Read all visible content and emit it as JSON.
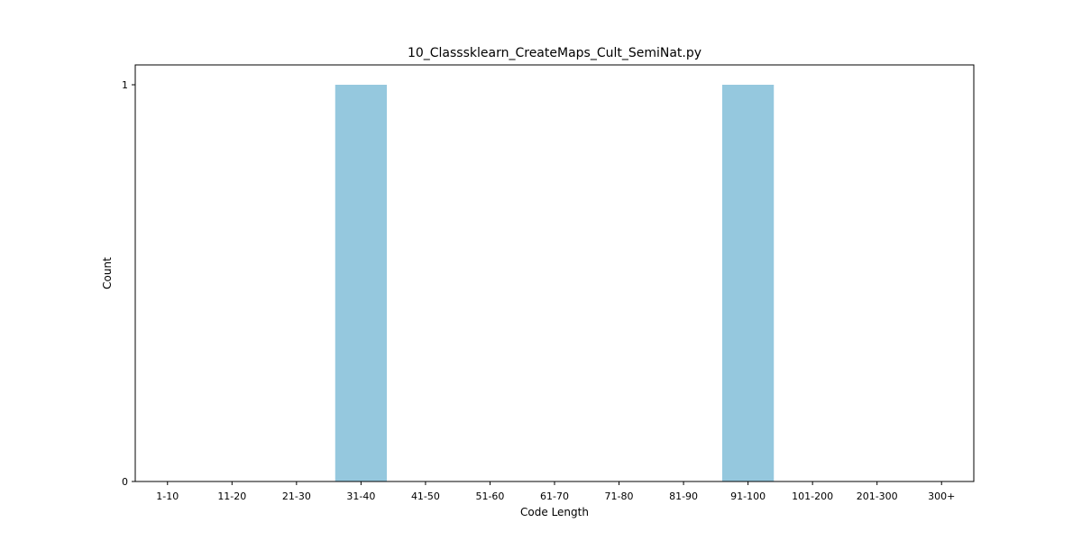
{
  "chart_data": {
    "type": "bar",
    "title": "10_Classsklearn_CreateMaps_Cult_SemiNat.py",
    "xlabel": "Code Length",
    "ylabel": "Count",
    "categories": [
      "1-10",
      "11-20",
      "21-30",
      "31-40",
      "41-50",
      "51-60",
      "61-70",
      "71-80",
      "81-90",
      "91-100",
      "101-200",
      "201-300",
      "300+"
    ],
    "values": [
      0,
      0,
      0,
      1,
      0,
      0,
      0,
      0,
      0,
      1,
      0,
      0,
      0
    ],
    "ylim": [
      0,
      1.05
    ],
    "yticks": [
      0,
      1
    ],
    "grid": false,
    "bar_color": "#95c8de"
  }
}
